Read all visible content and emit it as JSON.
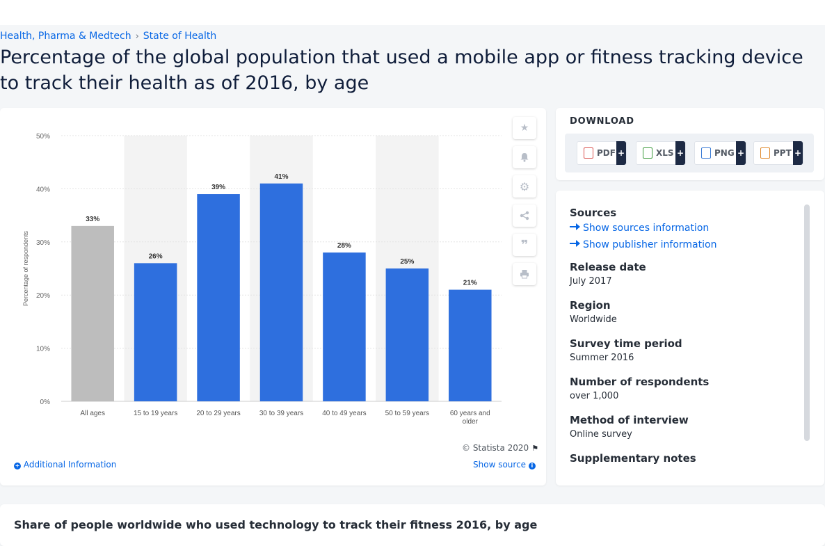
{
  "breadcrumb": {
    "category": "Health, Pharma & Medtech",
    "separator": "›",
    "subcategory": "State of Health"
  },
  "page_title": "Percentage of the global population that used a mobile app or fitness tracking device to track their health as of 2016, by age",
  "chart_card": {
    "copyright": "© Statista 2020",
    "additional_info": "Additional Information",
    "show_source": "Show source"
  },
  "download": {
    "title": "DOWNLOAD",
    "formats": [
      {
        "label": "PDF",
        "plus": "+"
      },
      {
        "label": "XLS",
        "plus": "+"
      },
      {
        "label": "PNG",
        "plus": "+"
      },
      {
        "label": "PPT",
        "plus": "+"
      }
    ]
  },
  "meta": {
    "sources_title": "Sources",
    "show_sources": "Show sources information",
    "show_publisher": "Show publisher information",
    "release_date_label": "Release date",
    "release_date": "July 2017",
    "region_label": "Region",
    "region": "Worldwide",
    "survey_period_label": "Survey time period",
    "survey_period": "Summer 2016",
    "respondents_label": "Number of respondents",
    "respondents": "over 1,000",
    "method_label": "Method of interview",
    "method": "Online survey",
    "supplementary_label": "Supplementary notes"
  },
  "related_title": "Share of people worldwide who used technology to track their fitness 2016, by age",
  "colors": {
    "bar": "#2e6fde",
    "bar_highlight": "#bdbdbd",
    "accent": "#0666e5"
  },
  "chart_data": {
    "type": "bar",
    "categories": [
      "All ages",
      "15 to 19 years",
      "20 to 29 years",
      "30 to 39 years",
      "40 to 49 years",
      "50 to 59 years",
      "60 years and older"
    ],
    "values": [
      33,
      26,
      39,
      41,
      28,
      25,
      21
    ],
    "value_labels": [
      "33%",
      "26%",
      "39%",
      "41%",
      "28%",
      "25%",
      "21%"
    ],
    "ylabel": "Percentage of respondents",
    "yticks": [
      0,
      10,
      20,
      30,
      40,
      50
    ],
    "ytick_labels": [
      "0%",
      "10%",
      "20%",
      "30%",
      "40%",
      "50%"
    ],
    "ylim": [
      0,
      50
    ],
    "highlight_index": 0,
    "grid": true
  }
}
